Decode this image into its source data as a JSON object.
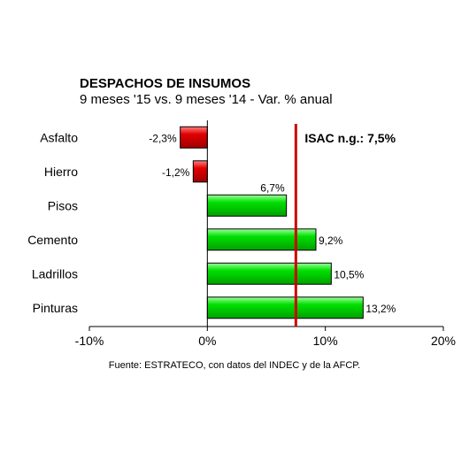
{
  "chart_data": {
    "type": "bar",
    "orientation": "horizontal",
    "title": "DESPACHOS DE INSUMOS",
    "subtitle": "9 meses '15 vs. 9 meses '14 - Var. % anual",
    "categories": [
      "Asfalto",
      "Hierro",
      "Pisos",
      "Cemento",
      "Ladrillos",
      "Pinturas"
    ],
    "values": [
      -2.3,
      -1.2,
      6.7,
      9.2,
      10.5,
      13.2
    ],
    "data_labels": [
      "-2,3%",
      "-1,2%",
      "6,7%",
      "9,2%",
      "10,5%",
      "13,2%"
    ],
    "xlim": [
      -10,
      20
    ],
    "xticks": [
      -10,
      0,
      10,
      20
    ],
    "xtick_labels": [
      "-10%",
      "0%",
      "10%",
      "20%"
    ],
    "reference_line": {
      "value": 7.5,
      "label": "ISAC n.g.: 7,5%",
      "color": "#cc0000"
    },
    "colors": {
      "positive": "#00dd00",
      "negative": "#dd0000"
    },
    "legend": "none",
    "grid": false
  },
  "source": "Fuente: ESTRATECO, con datos del INDEC y de la AFCP."
}
